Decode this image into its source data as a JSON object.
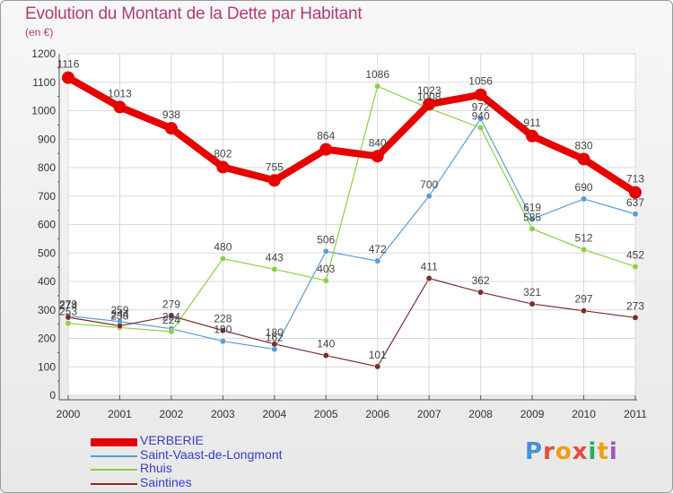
{
  "title": "Evolution du Montant de la Dette par Habitant",
  "subtitle": "(en €)",
  "logo": {
    "text": "Proxiti",
    "letter_colors": [
      "#4a90d9",
      "#e74c3c",
      "#f39c12",
      "#e74c3c",
      "#27ae60",
      "#f39c12",
      "#9b59b6"
    ]
  },
  "chart_data": {
    "type": "line",
    "title": "Evolution du Montant de la Dette par Habitant",
    "ylabel": "(en €)",
    "xlabel": "",
    "ylim": [
      0,
      1200
    ],
    "yticks": [
      0,
      100,
      200,
      300,
      400,
      500,
      600,
      700,
      800,
      900,
      1000,
      1100,
      1200
    ],
    "categories": [
      "2000",
      "2001",
      "2002",
      "2003",
      "2004",
      "2005",
      "2006",
      "2007",
      "2008",
      "2009",
      "2010",
      "2011"
    ],
    "grid": true,
    "legend_position": "bottom-left",
    "series": [
      {
        "name": "VERBERIE",
        "color": "#e60000",
        "values": [
          1116,
          1013,
          938,
          802,
          755,
          864,
          840,
          1023,
          1056,
          911,
          830,
          713
        ]
      },
      {
        "name": "Saint-Vaast-de-Longmont",
        "color": "#5b9bd5",
        "values": [
          279,
          259,
          234,
          190,
          162,
          506,
          472,
          700,
          972,
          619,
          690,
          637
        ]
      },
      {
        "name": "Rhuis",
        "color": "#8ccf46",
        "values": [
          253,
          238,
          224,
          480,
          443,
          403,
          1086,
          1008,
          940,
          585,
          512,
          452
        ]
      },
      {
        "name": "Saintines",
        "color": "#7b2d2d",
        "values": [
          274,
          244,
          279,
          228,
          180,
          140,
          101,
          411,
          362,
          321,
          297,
          273
        ]
      }
    ]
  }
}
